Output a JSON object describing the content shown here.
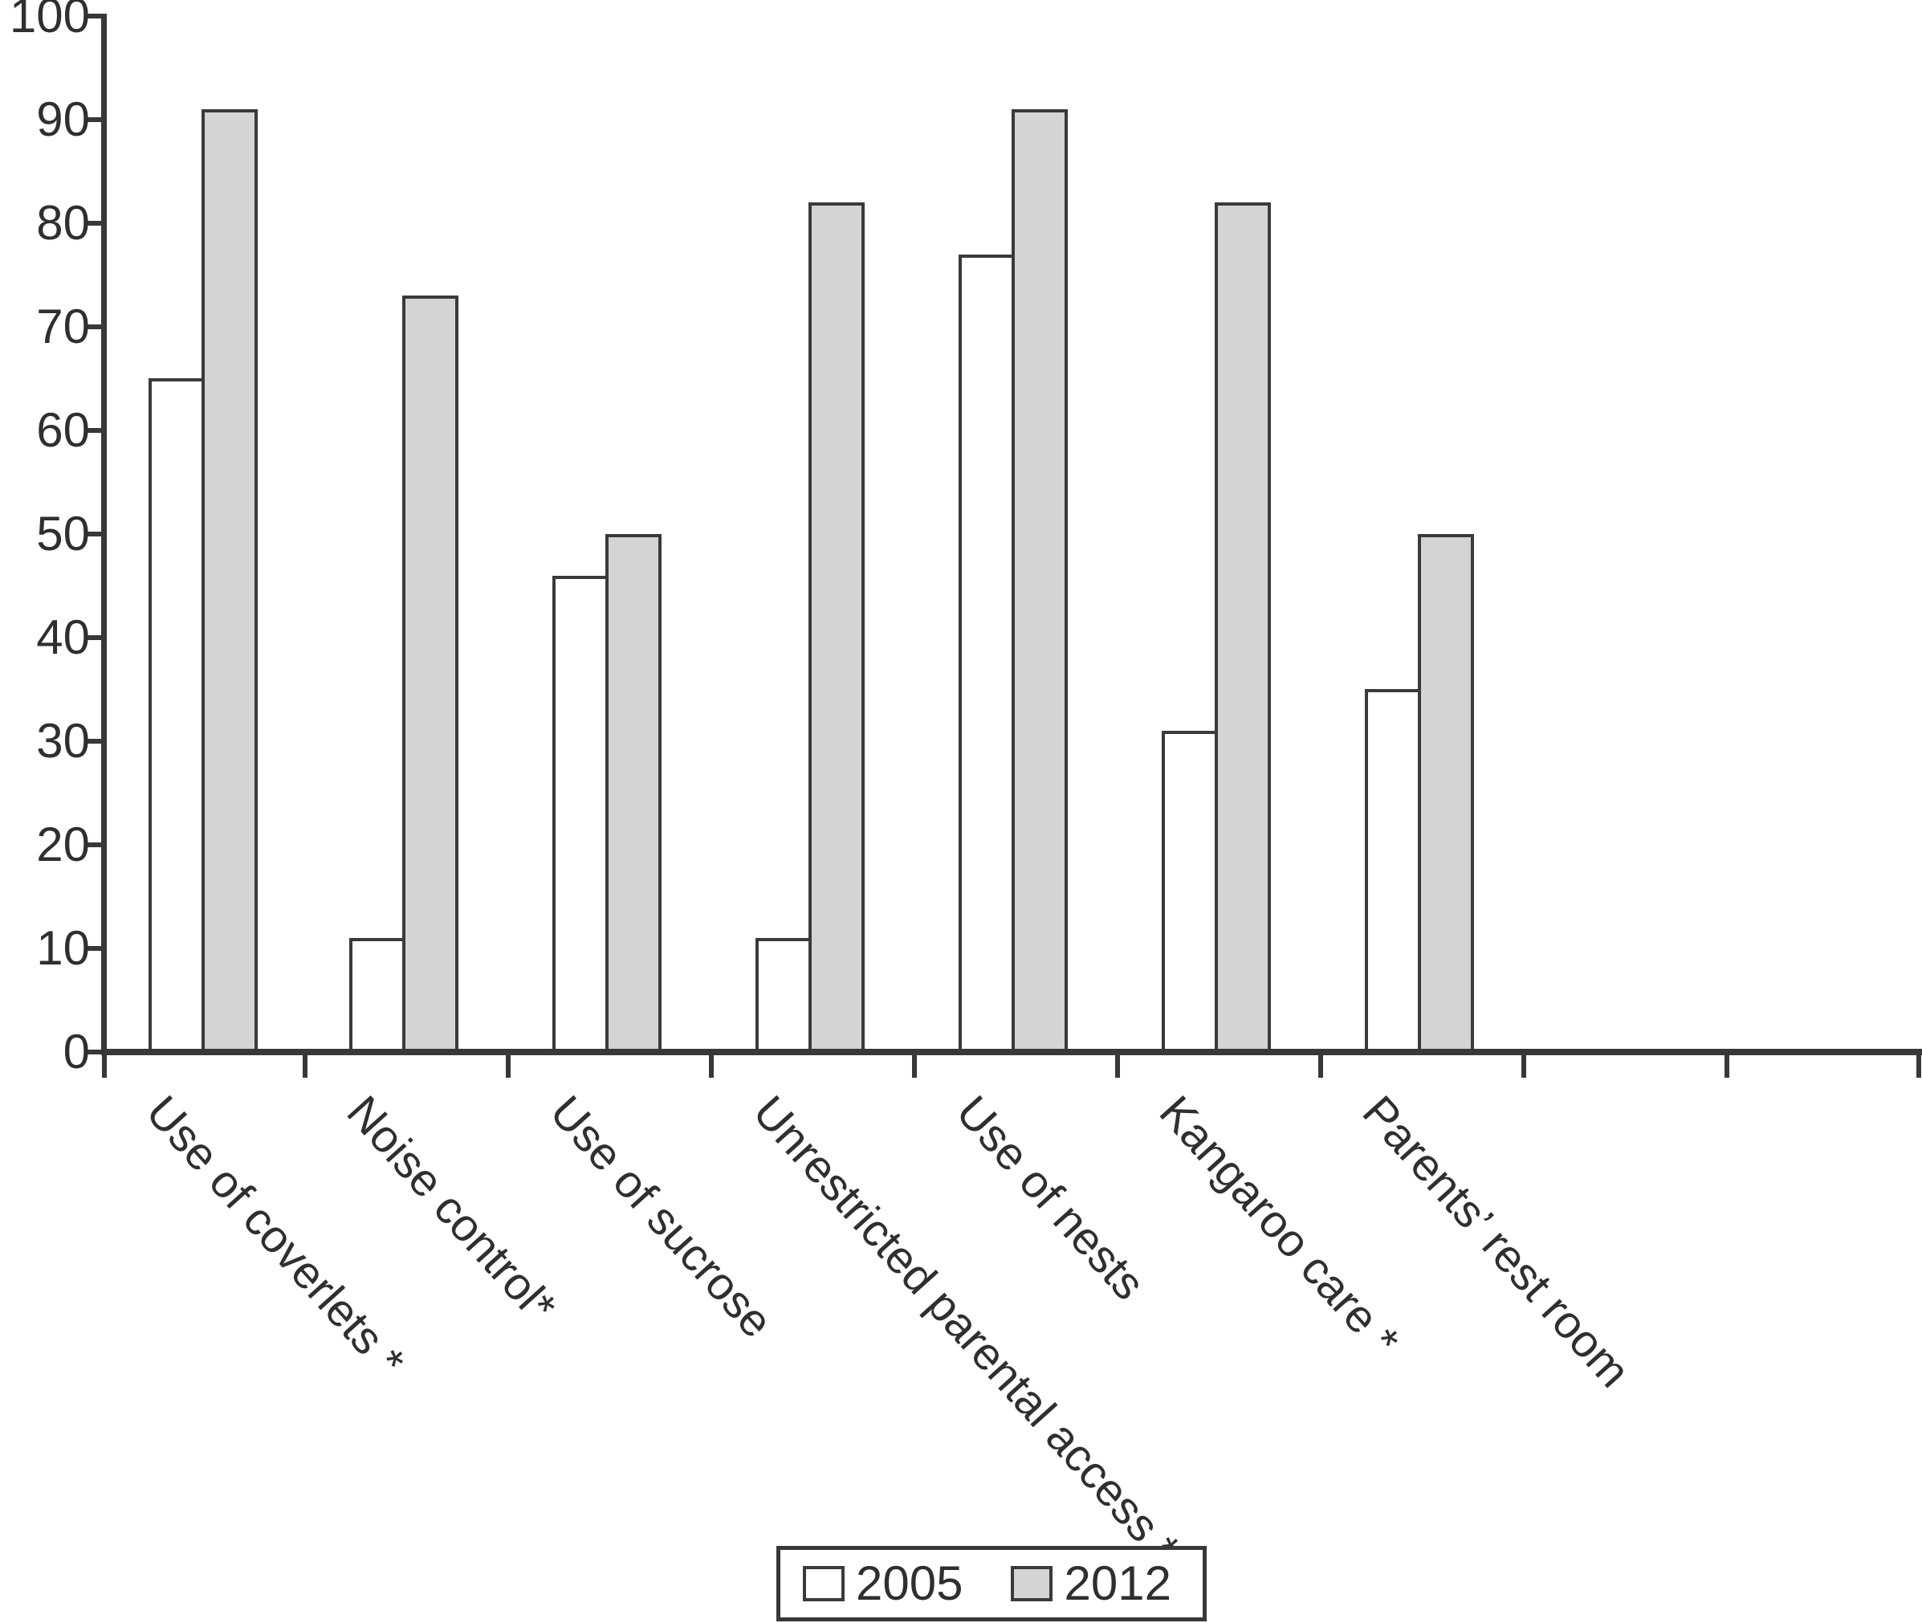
{
  "chart_data": {
    "type": "bar",
    "title": "",
    "categories": [
      "Use of coverlets *",
      "Noise control*",
      "Use of sucrose",
      "Unrestricted parental access *",
      "Use of nests",
      "Kangaroo care *",
      "Parents’ rest room"
    ],
    "series": [
      {
        "name": "2005",
        "color": "#ffffff",
        "values": [
          65,
          11,
          46,
          11,
          77,
          31,
          35
        ]
      },
      {
        "name": "2012",
        "color": "#d4d4d4",
        "values": [
          91,
          73,
          50,
          82,
          91,
          82,
          50
        ]
      }
    ],
    "xlabel": "",
    "ylabel": "",
    "ylim": [
      0,
      100
    ],
    "yticks": [
      0,
      10,
      20,
      30,
      40,
      50,
      60,
      70,
      80,
      90,
      100
    ],
    "grid": false,
    "legend_position": "bottom-center",
    "bar_outline_color": "#3a3a3a",
    "axis_color": "#383838",
    "text_color": "#2f2f2f",
    "background_color": "#ffffff"
  }
}
